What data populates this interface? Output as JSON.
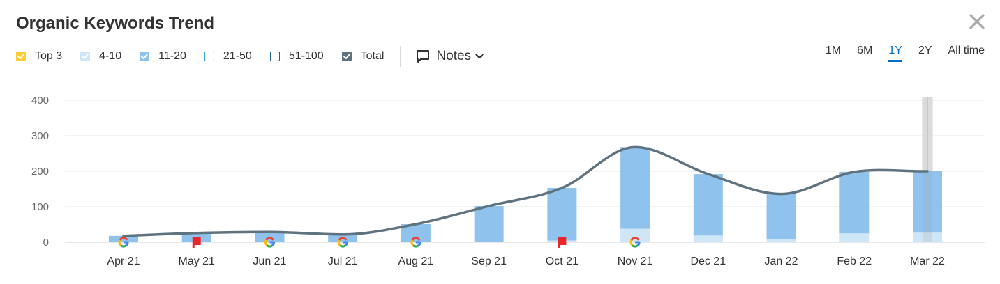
{
  "header": {
    "title": "Organic Keywords Trend",
    "close_icon": "close-icon"
  },
  "legend": [
    {
      "label": "Top 3",
      "checked": true,
      "color": "#ffcc33"
    },
    {
      "label": "4-10",
      "checked": true,
      "color": "#cfe6f7"
    },
    {
      "label": "11-20",
      "checked": true,
      "color": "#8fc3ee"
    },
    {
      "label": "21-50",
      "checked": false,
      "color": "#3a9ce6"
    },
    {
      "label": "51-100",
      "checked": false,
      "color": "#1e5f97"
    },
    {
      "label": "Total",
      "checked": true,
      "color": "#5f727f"
    }
  ],
  "notes": {
    "label": "Notes",
    "icon": "comment-icon",
    "chevron": "chevron-down-icon"
  },
  "periods": {
    "items": [
      "1M",
      "6M",
      "1Y",
      "2Y",
      "All time"
    ],
    "active": "1Y"
  },
  "chart_data": {
    "type": "bar",
    "categories": [
      "Apr 21",
      "May 21",
      "Jun 21",
      "Jul 21",
      "Aug 21",
      "Sep 21",
      "Oct 21",
      "Nov 21",
      "Dec 21",
      "Jan 22",
      "Feb 22",
      "Mar 22"
    ],
    "yticks": [
      0,
      100,
      200,
      300,
      400
    ],
    "ylim": [
      0,
      400
    ],
    "grid": true,
    "series": [
      {
        "name": "Top 3",
        "color": "#ffcc33",
        "values": [
          0,
          0,
          0,
          0,
          0,
          0,
          0,
          0,
          0,
          0,
          0,
          0
        ]
      },
      {
        "name": "4-10",
        "color": "#cfe6f7",
        "values": [
          1,
          1,
          1,
          1,
          1,
          2,
          5,
          38,
          19,
          8,
          25,
          27
        ]
      },
      {
        "name": "11-20",
        "color": "#8fc3ee",
        "values": [
          17,
          25,
          28,
          21,
          50,
          100,
          148,
          230,
          173,
          128,
          173,
          173
        ]
      }
    ],
    "line": {
      "name": "Total",
      "color": "#5f727f",
      "values": [
        18,
        26,
        29,
        22,
        51,
        102,
        153,
        268,
        192,
        136,
        198,
        200
      ]
    },
    "markers": [
      "google",
      "flag",
      "google",
      "google",
      "google",
      null,
      "flag",
      "google",
      null,
      null,
      null,
      null
    ],
    "highlighted_category": "Mar 22"
  }
}
